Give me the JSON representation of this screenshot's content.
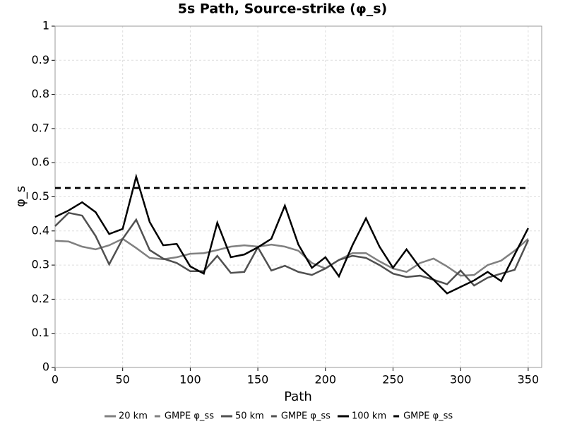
{
  "chart_data": {
    "type": "line",
    "title": "5s Path, Source-strike (φ_s)",
    "xlabel": "Path",
    "ylabel": "φ_s",
    "x": [
      0,
      10,
      20,
      30,
      40,
      50,
      60,
      70,
      80,
      90,
      100,
      110,
      120,
      130,
      140,
      150,
      160,
      170,
      180,
      190,
      200,
      210,
      220,
      230,
      240,
      250,
      260,
      270,
      280,
      290,
      300,
      310,
      320,
      330,
      340,
      350
    ],
    "series": [
      {
        "name": "20 km",
        "color": "#808080",
        "dash": false,
        "values": [
          0.371,
          0.369,
          0.354,
          0.346,
          0.358,
          0.377,
          0.35,
          0.321,
          0.317,
          0.323,
          0.333,
          0.335,
          0.344,
          0.354,
          0.358,
          0.354,
          0.36,
          0.354,
          0.342,
          0.306,
          0.29,
          0.315,
          0.335,
          0.335,
          0.311,
          0.29,
          0.28,
          0.306,
          0.319,
          0.296,
          0.269,
          0.271,
          0.3,
          0.313,
          0.342,
          0.377
        ]
      },
      {
        "name": "GMPE φ_ss",
        "color": "#808080",
        "dash": true,
        "values": [
          0.526,
          0.526,
          0.526,
          0.526,
          0.526,
          0.526,
          0.526,
          0.526,
          0.526,
          0.526,
          0.526,
          0.526,
          0.526,
          0.526,
          0.526,
          0.526,
          0.526,
          0.526,
          0.526,
          0.526,
          0.526,
          0.526,
          0.526,
          0.526,
          0.526,
          0.526,
          0.526,
          0.526,
          0.526,
          0.526,
          0.526,
          0.526,
          0.526,
          0.526,
          0.526,
          0.526
        ]
      },
      {
        "name": "50 km",
        "color": "#505050",
        "dash": false,
        "values": [
          0.414,
          0.453,
          0.445,
          0.385,
          0.302,
          0.377,
          0.433,
          0.344,
          0.319,
          0.306,
          0.282,
          0.282,
          0.327,
          0.277,
          0.28,
          0.352,
          0.284,
          0.298,
          0.28,
          0.271,
          0.29,
          0.315,
          0.327,
          0.321,
          0.3,
          0.275,
          0.265,
          0.269,
          0.257,
          0.244,
          0.284,
          0.24,
          0.263,
          0.275,
          0.286,
          0.373
        ]
      },
      {
        "name": "GMPE φ_ss",
        "color": "#505050",
        "dash": true,
        "values": [
          0.526,
          0.526,
          0.526,
          0.526,
          0.526,
          0.526,
          0.526,
          0.526,
          0.526,
          0.526,
          0.526,
          0.526,
          0.526,
          0.526,
          0.526,
          0.526,
          0.526,
          0.526,
          0.526,
          0.526,
          0.526,
          0.526,
          0.526,
          0.526,
          0.526,
          0.526,
          0.526,
          0.526,
          0.526,
          0.526,
          0.526,
          0.526,
          0.526,
          0.526,
          0.526,
          0.526
        ]
      },
      {
        "name": "100 km",
        "color": "#000000",
        "dash": false,
        "values": [
          0.441,
          0.46,
          0.484,
          0.455,
          0.391,
          0.406,
          0.559,
          0.426,
          0.358,
          0.362,
          0.296,
          0.275,
          0.424,
          0.323,
          0.331,
          0.352,
          0.377,
          0.474,
          0.36,
          0.292,
          0.323,
          0.267,
          0.358,
          0.437,
          0.354,
          0.292,
          0.346,
          0.292,
          0.257,
          0.217,
          0.236,
          0.255,
          0.28,
          0.253,
          0.331,
          0.408
        ]
      },
      {
        "name": "GMPE φ_ss",
        "color": "#000000",
        "dash": true,
        "values": [
          0.526,
          0.526,
          0.526,
          0.526,
          0.526,
          0.526,
          0.526,
          0.526,
          0.526,
          0.526,
          0.526,
          0.526,
          0.526,
          0.526,
          0.526,
          0.526,
          0.526,
          0.526,
          0.526,
          0.526,
          0.526,
          0.526,
          0.526,
          0.526,
          0.526,
          0.526,
          0.526,
          0.526,
          0.526,
          0.526,
          0.526,
          0.526,
          0.526,
          0.526,
          0.526,
          0.526
        ]
      }
    ],
    "xlim": [
      0,
      360
    ],
    "ylim": [
      0,
      1
    ],
    "xticks": [
      0,
      50,
      100,
      150,
      200,
      250,
      300,
      350
    ],
    "yticks": [
      0,
      0.1,
      0.2,
      0.3,
      0.4,
      0.5,
      0.6,
      0.7,
      0.8,
      0.9,
      1
    ],
    "grid": true,
    "legend": "bottom"
  }
}
